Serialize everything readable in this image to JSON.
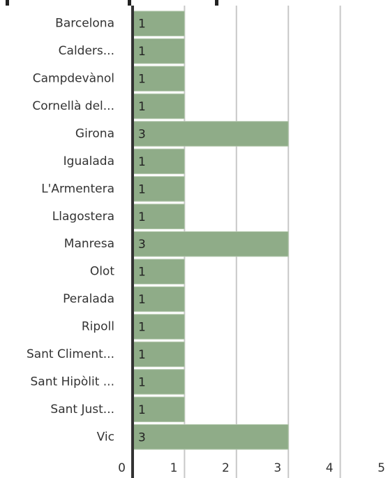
{
  "chart_data": {
    "type": "bar",
    "orientation": "horizontal",
    "categories": [
      "Barcelona",
      "Calders...",
      "Campdevànol",
      "Cornellà del...",
      "Girona",
      "Igualada",
      "L'Armentera",
      "Llagostera",
      "Manresa",
      "Olot",
      "Peralada",
      "Ripoll",
      "Sant Climent...",
      "Sant Hipòlit ...",
      "Sant Just...",
      "Vic"
    ],
    "values": [
      1,
      1,
      1,
      1,
      3,
      1,
      1,
      1,
      3,
      1,
      1,
      1,
      1,
      1,
      1,
      3
    ],
    "color": "#8fac88",
    "xlim": [
      0,
      5
    ],
    "xticks": [
      0,
      1,
      2,
      3,
      4,
      5
    ],
    "grid": true
  }
}
